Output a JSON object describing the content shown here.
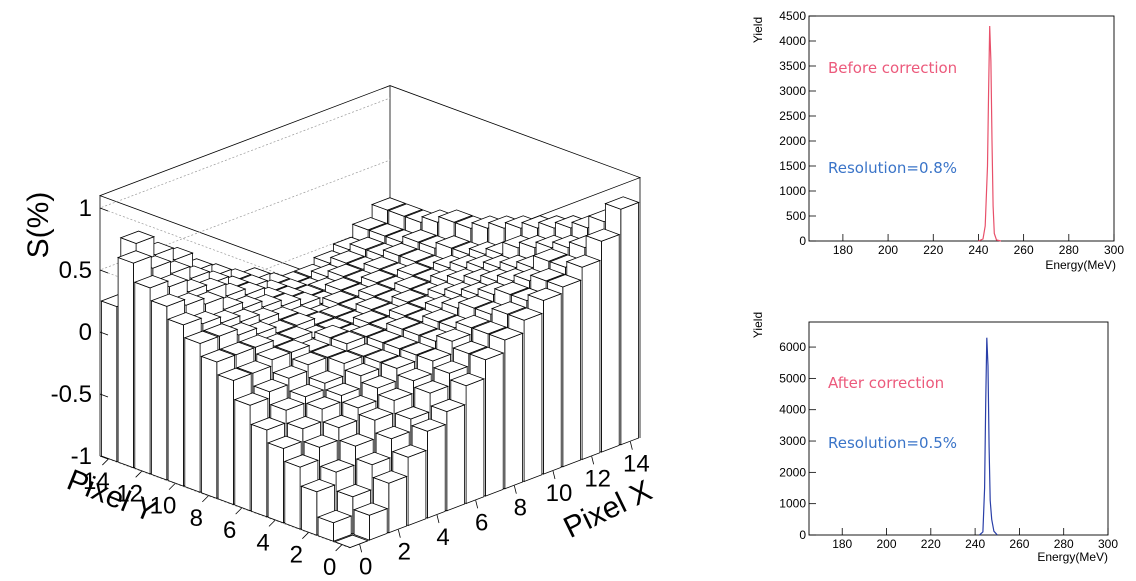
{
  "colors": {
    "before_line": "#e8506a",
    "after_line": "#2a3fa8",
    "annotation_pink": "#ec5a7c",
    "annotation_blue": "#3a74c8",
    "bar_fill": "#ffffff",
    "bar_edge": "#000000"
  },
  "chart_data": [
    {
      "type": "bar3d",
      "zlabel": "S(%)",
      "xlabel": "Pixel X",
      "ylabel": "Pixel Y",
      "x_ticks": [
        "0",
        "2",
        "4",
        "6",
        "8",
        "10",
        "12",
        "14"
      ],
      "y_ticks": [
        "0",
        "2",
        "4",
        "6",
        "8",
        "10",
        "12",
        "14"
      ],
      "z_ticks": [
        "-1",
        "-0.5",
        "0",
        "0.5",
        "1"
      ],
      "xlim": [
        0,
        15
      ],
      "ylim": [
        0,
        15
      ],
      "zlim": [
        -1,
        1.1
      ],
      "grid": true,
      "z_values": [
        [
          -1.0,
          -0.8,
          -0.6,
          -0.45,
          -0.3,
          -0.2,
          -0.05,
          0.1,
          0.2,
          0.3,
          0.4,
          0.45,
          0.55,
          0.7,
          0.9
        ],
        [
          -0.85,
          -0.7,
          -0.5,
          -0.35,
          -0.25,
          -0.1,
          0.0,
          0.1,
          0.2,
          0.3,
          0.35,
          0.45,
          0.5,
          0.6,
          0.75
        ],
        [
          -0.65,
          -0.55,
          -0.4,
          -0.25,
          -0.15,
          -0.05,
          0.05,
          0.15,
          0.2,
          0.25,
          0.35,
          0.4,
          0.5,
          0.55,
          0.65
        ],
        [
          -0.5,
          -0.4,
          -0.3,
          -0.2,
          -0.1,
          0.0,
          0.05,
          0.1,
          0.15,
          0.25,
          0.3,
          0.35,
          0.4,
          0.5,
          0.6
        ],
        [
          -0.4,
          -0.3,
          -0.2,
          -0.15,
          -0.05,
          0.0,
          0.05,
          0.1,
          0.15,
          0.2,
          0.25,
          0.3,
          0.35,
          0.45,
          0.55
        ],
        [
          -0.3,
          -0.2,
          -0.15,
          -0.1,
          0.0,
          0.0,
          0.05,
          0.1,
          0.1,
          0.15,
          0.2,
          0.25,
          0.3,
          0.4,
          0.5
        ],
        [
          -0.15,
          -0.1,
          -0.05,
          0.0,
          0.0,
          0.05,
          0.05,
          0.05,
          0.1,
          0.1,
          0.15,
          0.2,
          0.25,
          0.3,
          0.45
        ],
        [
          0.0,
          0.0,
          0.05,
          0.05,
          0.0,
          0.05,
          0.0,
          0.05,
          0.05,
          0.1,
          0.1,
          0.15,
          0.2,
          0.25,
          0.4
        ],
        [
          0.1,
          0.1,
          0.1,
          0.05,
          0.05,
          0.0,
          0.0,
          0.0,
          0.05,
          0.05,
          0.1,
          0.1,
          0.15,
          0.2,
          0.35
        ],
        [
          0.2,
          0.2,
          0.15,
          0.1,
          0.05,
          0.05,
          0.0,
          0.0,
          0.0,
          0.05,
          0.05,
          0.1,
          0.1,
          0.2,
          0.3
        ],
        [
          0.3,
          0.25,
          0.2,
          0.15,
          0.1,
          0.05,
          0.0,
          -0.05,
          0.0,
          0.0,
          0.05,
          0.05,
          0.1,
          0.15,
          0.3
        ],
        [
          0.4,
          0.35,
          0.3,
          0.2,
          0.15,
          0.1,
          0.05,
          0.0,
          -0.05,
          0.0,
          0.0,
          0.05,
          0.1,
          0.15,
          0.25
        ],
        [
          0.5,
          0.45,
          0.35,
          0.3,
          0.2,
          0.15,
          0.05,
          0.0,
          -0.05,
          -0.05,
          0.0,
          0.0,
          0.05,
          0.1,
          0.2
        ],
        [
          0.65,
          0.55,
          0.45,
          0.35,
          0.25,
          0.15,
          0.1,
          0.0,
          -0.05,
          -0.1,
          -0.05,
          0.0,
          0.05,
          0.1,
          0.2
        ],
        [
          0.25,
          0.7,
          0.55,
          0.45,
          0.3,
          0.2,
          0.1,
          0.05,
          -0.05,
          -0.1,
          -0.1,
          -0.05,
          0.0,
          0.1,
          0.2
        ]
      ]
    },
    {
      "type": "line",
      "ylabel": "Yield",
      "xlabel": "Energy(MeV)",
      "xlim": [
        165,
        300
      ],
      "ylim": [
        0,
        4500
      ],
      "x_ticks": [
        "180",
        "200",
        "220",
        "240",
        "260",
        "280",
        "300"
      ],
      "y_ticks": [
        "0",
        "500",
        "1000",
        "1500",
        "2000",
        "2500",
        "3000",
        "3500",
        "4000",
        "4500"
      ],
      "annotation_title": "Before correction",
      "annotation_resolution": "Resolution=0.8%",
      "x": [
        240,
        242,
        243,
        244,
        244.5,
        245,
        245.5,
        246,
        246.5,
        247,
        248,
        250
      ],
      "y": [
        0,
        40,
        300,
        1500,
        3000,
        4300,
        3600,
        2000,
        700,
        150,
        20,
        0
      ]
    },
    {
      "type": "line",
      "ylabel": "Yield",
      "xlabel": "Energy(MeV)",
      "xlim": [
        165,
        300
      ],
      "ylim": [
        0,
        6800
      ],
      "x_ticks": [
        "180",
        "200",
        "220",
        "240",
        "260",
        "280",
        "300"
      ],
      "y_ticks": [
        "0",
        "1000",
        "2000",
        "3000",
        "4000",
        "5000",
        "6000"
      ],
      "annotation_title": "After correction",
      "annotation_resolution": "Resolution=0.5%",
      "x": [
        242,
        243.5,
        244.3,
        244.8,
        245.3,
        245.8,
        246.3,
        246.8,
        247.5,
        248.5,
        250
      ],
      "y": [
        0,
        100,
        1500,
        4200,
        6300,
        5400,
        2800,
        1100,
        500,
        120,
        0
      ]
    }
  ]
}
